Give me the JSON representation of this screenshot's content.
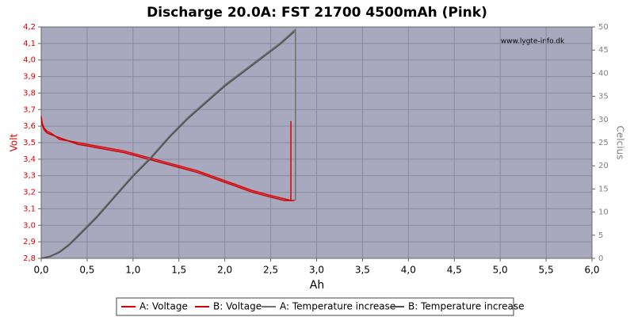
{
  "chart_data": {
    "type": "line",
    "title": "Discharge 20.0A: FST 21700 4500mAh (Pink)",
    "watermark": "www.lygte-info.dk",
    "xlabel": "Ah",
    "ylabel": "Volt",
    "y2label": "Celcius",
    "xlim": [
      0,
      6
    ],
    "ylim": [
      2.8,
      4.2
    ],
    "y2lim": [
      0,
      50
    ],
    "grid": true,
    "xticks": [
      {
        "value": 0,
        "label": "0,0"
      },
      {
        "value": 0.5,
        "label": "0,5"
      },
      {
        "value": 1,
        "label": "1,0"
      },
      {
        "value": 1.5,
        "label": "1,5"
      },
      {
        "value": 2,
        "label": "2,0"
      },
      {
        "value": 2.5,
        "label": "2,5"
      },
      {
        "value": 3,
        "label": "3,0"
      },
      {
        "value": 3.5,
        "label": "3,5"
      },
      {
        "value": 4,
        "label": "4,0"
      },
      {
        "value": 4.5,
        "label": "4,5"
      },
      {
        "value": 5,
        "label": "5,0"
      },
      {
        "value": 5.5,
        "label": "5,5"
      },
      {
        "value": 6,
        "label": "6,0"
      }
    ],
    "yticks": [
      {
        "value": 2.8,
        "label": "2,8"
      },
      {
        "value": 2.9,
        "label": "2,9"
      },
      {
        "value": 3,
        "label": "3,0"
      },
      {
        "value": 3.1,
        "label": "3,1"
      },
      {
        "value": 3.2,
        "label": "3,2"
      },
      {
        "value": 3.3,
        "label": "3,3"
      },
      {
        "value": 3.4,
        "label": "3,4"
      },
      {
        "value": 3.5,
        "label": "3,5"
      },
      {
        "value": 3.6,
        "label": "3,6"
      },
      {
        "value": 3.7,
        "label": "3,7"
      },
      {
        "value": 3.8,
        "label": "3,8"
      },
      {
        "value": 3.9,
        "label": "3,9"
      },
      {
        "value": 4,
        "label": "4,0"
      },
      {
        "value": 4.1,
        "label": "4,1"
      },
      {
        "value": 4.2,
        "label": "4,2"
      }
    ],
    "y2ticks": [
      0,
      5,
      10,
      15,
      20,
      25,
      30,
      35,
      40,
      45,
      50
    ],
    "series": [
      {
        "name": "A: Voltage",
        "color": "#e00000",
        "x": [
          0,
          0.01,
          0.03,
          0.06,
          0.1,
          0.15,
          0.2,
          0.3,
          0.4,
          0.5,
          0.7,
          0.9,
          1.1,
          1.3,
          1.5,
          1.7,
          1.9,
          2.1,
          2.3,
          2.5,
          2.65,
          2.72,
          2.72
        ],
        "values": [
          3.66,
          3.62,
          3.59,
          3.57,
          3.56,
          3.54,
          3.53,
          3.51,
          3.5,
          3.49,
          3.47,
          3.45,
          3.42,
          3.39,
          3.36,
          3.33,
          3.29,
          3.25,
          3.21,
          3.18,
          3.16,
          3.15,
          3.63
        ]
      },
      {
        "name": "B: Voltage",
        "color": "#cc0000",
        "x": [
          0,
          0.01,
          0.03,
          0.06,
          0.1,
          0.15,
          0.2,
          0.3,
          0.4,
          0.5,
          0.7,
          0.9,
          1.1,
          1.3,
          1.5,
          1.7,
          1.9,
          2.1,
          2.3,
          2.5,
          2.65,
          2.76
        ],
        "values": [
          3.65,
          3.61,
          3.58,
          3.56,
          3.55,
          3.54,
          3.52,
          3.51,
          3.49,
          3.48,
          3.46,
          3.44,
          3.41,
          3.38,
          3.35,
          3.32,
          3.28,
          3.24,
          3.2,
          3.17,
          3.15,
          3.15
        ]
      },
      {
        "name": "A: Temperature increase",
        "color": "#707070",
        "axis": "y2",
        "x": [
          0,
          0.1,
          0.2,
          0.3,
          0.4,
          0.5,
          0.6,
          0.8,
          1.0,
          1.2,
          1.4,
          1.6,
          1.8,
          2.0,
          2.2,
          2.4,
          2.6,
          2.77,
          2.77
        ],
        "values": [
          0,
          0.5,
          1.5,
          3,
          5,
          7,
          9,
          13.5,
          18,
          22,
          26.5,
          30.5,
          34,
          37.5,
          40.5,
          43.5,
          46.5,
          49.5,
          12.5
        ]
      },
      {
        "name": "B: Temperature increase",
        "color": "#505050",
        "axis": "y2",
        "x": [
          0,
          0.1,
          0.2,
          0.3,
          0.4,
          0.5,
          0.6,
          0.8,
          1.0,
          1.2,
          1.4,
          1.6,
          1.8,
          2.0,
          2.2,
          2.4,
          2.6,
          2.76
        ],
        "values": [
          0,
          0.4,
          1.3,
          2.8,
          4.7,
          6.7,
          8.7,
          13.2,
          17.7,
          21.7,
          26.2,
          30.2,
          33.7,
          37.2,
          40.2,
          43.2,
          46.2,
          49
        ]
      }
    ]
  }
}
